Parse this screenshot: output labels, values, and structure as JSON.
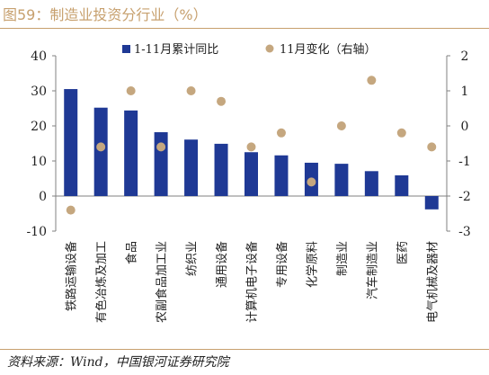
{
  "title": "图59：制造业投资分行业（%）",
  "source": "资料来源：Wind，中国银河证券研究院",
  "colors": {
    "bar": "#1f3995",
    "dot": "#c5a77f",
    "accent": "#c7a06e",
    "axis": "#808080"
  },
  "chart_data": {
    "type": "bar",
    "categories": [
      "铁路运输设备",
      "有色冶炼及加工",
      "食品",
      "农副食品加工业",
      "纺织业",
      "通用设备",
      "计算机电子设备",
      "专用设备",
      "化学原料",
      "制造业",
      "汽车制造业",
      "医药",
      "电气机械及器材"
    ],
    "series": [
      {
        "name": "1-11月累计同比",
        "type": "bar",
        "axis": "left",
        "values": [
          30.5,
          25.2,
          24.4,
          18.2,
          16.1,
          14.9,
          12.5,
          11.6,
          9.5,
          9.2,
          7.1,
          5.9,
          -3.8
        ]
      },
      {
        "name": "11月变化（右轴）",
        "type": "scatter",
        "axis": "right",
        "values": [
          -2.4,
          -0.6,
          1.0,
          -0.6,
          1.0,
          0.7,
          -0.6,
          -0.2,
          -1.6,
          0.0,
          1.3,
          -0.2,
          -0.6
        ]
      }
    ],
    "ylim_left": [
      -10,
      40
    ],
    "ylim_right": [
      -3,
      2
    ],
    "yticks_left": [
      "40",
      "30",
      "20",
      "10",
      "0",
      "-10"
    ],
    "yticks_right": [
      "2",
      "1",
      "0",
      "-1",
      "-2",
      "-3"
    ],
    "legend_position": "top",
    "grid": false
  }
}
